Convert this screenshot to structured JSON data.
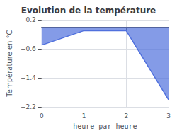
{
  "chart_data": {
    "type": "area",
    "title": "Evolution de la température",
    "xlabel": "heure par heure",
    "ylabel": "Température en °C",
    "x": [
      0,
      1,
      2,
      3
    ],
    "values": [
      -0.5,
      -0.1,
      -0.1,
      -2.0
    ],
    "xlim": [
      0,
      3
    ],
    "xticks": [
      0,
      1,
      2,
      3
    ],
    "ylim": [
      -2.2,
      0.2
    ],
    "yticks": [
      0.2,
      {
        "value": -0.6,
        "label": "−0.6"
      },
      {
        "value": -1.4,
        "label": "−1.4"
      },
      {
        "value": -2.2,
        "label": "−2.2"
      }
    ],
    "grid": true
  }
}
